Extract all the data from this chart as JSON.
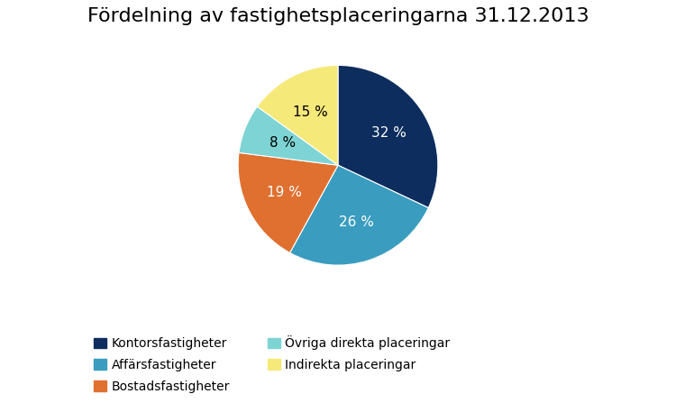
{
  "title": "Fördelning av fastighetsplaceringarna 31.12.2013",
  "slices": [
    32,
    26,
    19,
    8,
    15
  ],
  "labels": [
    "32 %",
    "26 %",
    "19 %",
    "8 %",
    "15 %"
  ],
  "colors": [
    "#0d2d5e",
    "#3a9dbf",
    "#e07030",
    "#7ed4d4",
    "#f5e97a"
  ],
  "legend_labels": [
    "Kontorsfastigheter",
    "Affärsfastigheter",
    "Bostadsfastigheter",
    "Övriga direkta placeringar",
    "Indirekta placeringar"
  ],
  "startangle": 90,
  "title_fontsize": 16,
  "label_fontsize": 11,
  "legend_fontsize": 10,
  "background_color": "#ffffff",
  "label_colors": [
    "white",
    "white",
    "white",
    "black",
    "black"
  ]
}
